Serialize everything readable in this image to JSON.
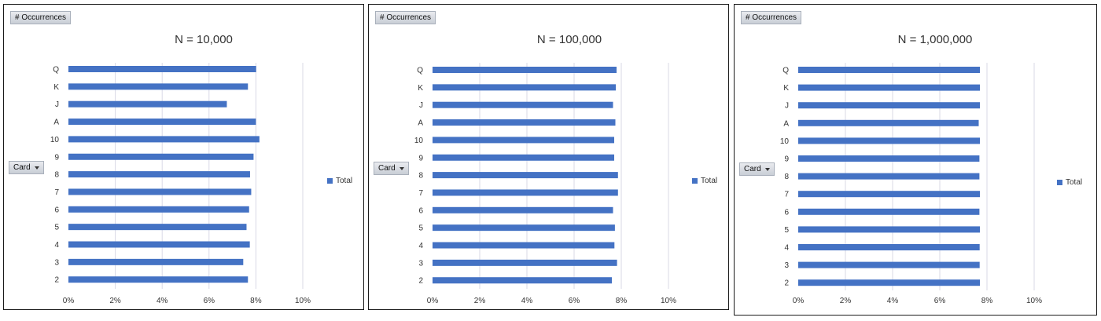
{
  "colors": {
    "bar": "#4472c4",
    "grid": "#d9d9e6",
    "axis_text": "#333333"
  },
  "ui": {
    "values_button": "# Occurrences",
    "axis_button": "Card",
    "dropdown_icon": "chevron-down-icon"
  },
  "chart_data": [
    {
      "type": "bar",
      "orientation": "horizontal",
      "title": "N = 10,000",
      "categories": [
        "Q",
        "K",
        "J",
        "A",
        "10",
        "9",
        "8",
        "7",
        "6",
        "5",
        "4",
        "3",
        "2"
      ],
      "series": [
        {
          "name": "Total",
          "values": [
            0.0801,
            0.0766,
            0.0676,
            0.08,
            0.0815,
            0.079,
            0.0775,
            0.078,
            0.0771,
            0.076,
            0.0774,
            0.0746,
            0.0766
          ]
        }
      ],
      "xlim": [
        0,
        0.1
      ],
      "xticks": [
        "0%",
        "2%",
        "4%",
        "6%",
        "8%",
        "10%"
      ],
      "grid": true,
      "legend_position": "right"
    },
    {
      "type": "bar",
      "orientation": "horizontal",
      "title": "N = 100,000",
      "categories": [
        "Q",
        "K",
        "J",
        "A",
        "10",
        "9",
        "8",
        "7",
        "6",
        "5",
        "4",
        "3",
        "2"
      ],
      "series": [
        {
          "name": "Total",
          "values": [
            0.078,
            0.0777,
            0.0765,
            0.0775,
            0.077,
            0.077,
            0.0786,
            0.0786,
            0.0765,
            0.0773,
            0.0771,
            0.0782,
            0.076
          ]
        }
      ],
      "xlim": [
        0,
        0.1
      ],
      "xticks": [
        "0%",
        "2%",
        "4%",
        "6%",
        "8%",
        "10%"
      ],
      "grid": true,
      "legend_position": "right"
    },
    {
      "type": "bar",
      "orientation": "horizontal",
      "title": "N = 1,000,000",
      "categories": [
        "Q",
        "K",
        "J",
        "A",
        "10",
        "9",
        "8",
        "7",
        "6",
        "5",
        "4",
        "3",
        "2"
      ],
      "series": [
        {
          "name": "Total",
          "values": [
            0.077,
            0.077,
            0.077,
            0.0765,
            0.077,
            0.0768,
            0.0768,
            0.077,
            0.0768,
            0.077,
            0.0769,
            0.0769,
            0.077
          ]
        }
      ],
      "xlim": [
        0,
        0.1
      ],
      "xticks": [
        "0%",
        "2%",
        "4%",
        "6%",
        "8%",
        "10%"
      ],
      "grid": true,
      "legend_position": "right"
    }
  ]
}
